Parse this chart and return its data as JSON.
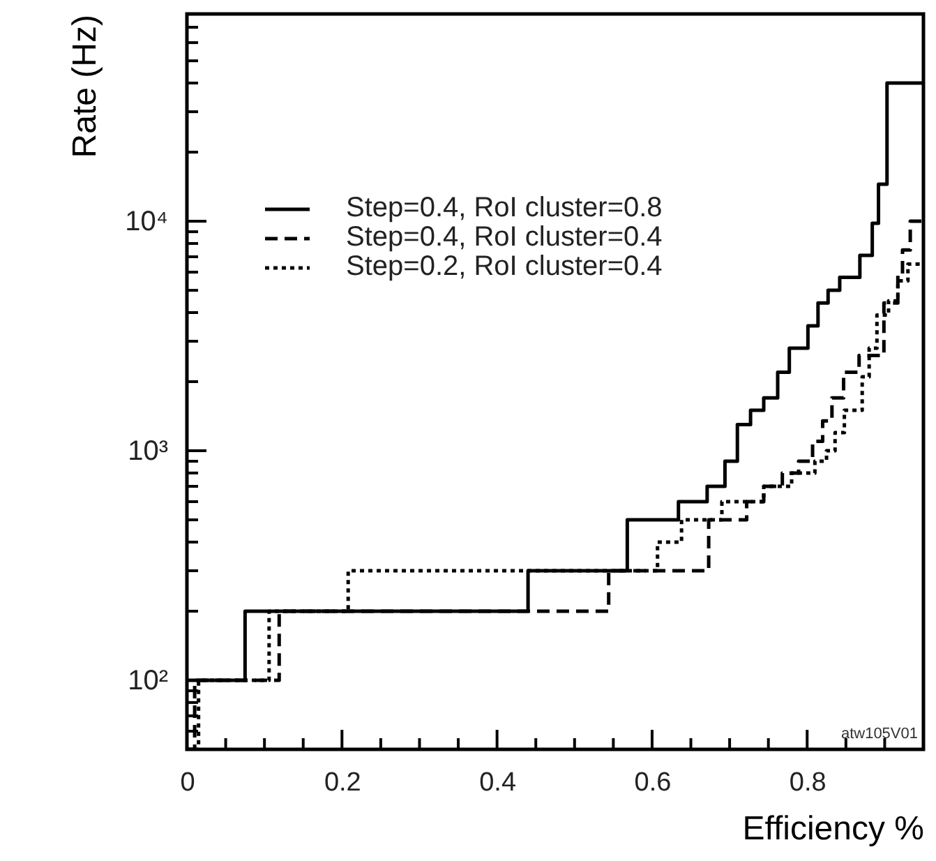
{
  "chart_data": {
    "type": "step",
    "xlabel": "Efficiency %",
    "ylabel": "Rate (Hz)",
    "log": "y",
    "grid": false,
    "legend": "top left",
    "xlim": [
      0,
      0.95
    ],
    "ylim": [
      50,
      80000
    ],
    "xticks": [
      0,
      {
        "value": 0.05,
        "label": null
      },
      {
        "value": 0.1,
        "label": null
      },
      {
        "value": 0.15,
        "label": null
      },
      0.2,
      {
        "value": 0.25,
        "label": null
      },
      {
        "value": 0.3,
        "label": null
      },
      {
        "value": 0.35,
        "label": null
      },
      0.4,
      {
        "value": 0.45,
        "label": null
      },
      {
        "value": 0.5,
        "label": null
      },
      {
        "value": 0.55,
        "label": null
      },
      0.6,
      {
        "value": 0.65,
        "label": null
      },
      {
        "value": 0.7,
        "label": null
      },
      {
        "value": 0.75,
        "label": null
      },
      0.8,
      {
        "value": 0.85,
        "label": null
      },
      {
        "value": 0.9,
        "label": null
      }
    ],
    "yticks": [
      {
        "value": 60,
        "label": null
      },
      {
        "value": 70,
        "label": null
      },
      {
        "value": 80,
        "label": null
      },
      {
        "value": 90,
        "label": null
      },
      {
        "value": 100,
        "label": "10²"
      },
      {
        "value": 200,
        "label": null
      },
      {
        "value": 300,
        "label": null
      },
      {
        "value": 400,
        "label": null
      },
      {
        "value": 500,
        "label": null
      },
      {
        "value": 600,
        "label": null
      },
      {
        "value": 700,
        "label": null
      },
      {
        "value": 800,
        "label": null
      },
      {
        "value": 900,
        "label": null
      },
      {
        "value": 1000,
        "label": "10³"
      },
      {
        "value": 2000,
        "label": null
      },
      {
        "value": 3000,
        "label": null
      },
      {
        "value": 4000,
        "label": null
      },
      {
        "value": 5000,
        "label": null
      },
      {
        "value": 6000,
        "label": null
      },
      {
        "value": 7000,
        "label": null
      },
      {
        "value": 8000,
        "label": null
      },
      {
        "value": 9000,
        "label": null
      },
      {
        "value": 10000,
        "label": "10⁴"
      },
      {
        "value": 20000,
        "label": null
      },
      {
        "value": 30000,
        "label": null
      },
      {
        "value": 40000,
        "label": null
      },
      {
        "value": 50000,
        "label": null
      },
      {
        "value": 60000,
        "label": null
      },
      {
        "value": 70000,
        "label": null
      }
    ],
    "annotations": [
      "atw105V01"
    ],
    "series": [
      {
        "name": "Step=0.4, RoI cluster=0.8",
        "color": "#000000",
        "line_style": "solid",
        "x": [
          0,
          0.075,
          0.44,
          0.568,
          0.634,
          0.671,
          0.694,
          0.71,
          0.727,
          0.744,
          0.762,
          0.777,
          0.801,
          0.814,
          0.827,
          0.842,
          0.868,
          0.884,
          0.892,
          0.903,
          0.95
        ],
        "values": [
          100,
          200,
          300,
          500,
          600,
          700,
          900,
          1300,
          1500,
          1700,
          2200,
          2800,
          3500,
          4400,
          5000,
          5700,
          7100,
          9800,
          14500,
          40000,
          40000
        ]
      },
      {
        "name": "Step=0.4, RoI cluster=0.4",
        "color": "#000000",
        "line_style": "dashed",
        "x": [
          0,
          0.01,
          0.119,
          0.544,
          0.673,
          0.722,
          0.744,
          0.768,
          0.789,
          0.807,
          0.82,
          0.832,
          0.847,
          0.867,
          0.899,
          0.917,
          0.923,
          0.933,
          0.95
        ],
        "values": [
          50,
          100,
          200,
          300,
          500,
          600,
          700,
          800,
          900,
          1100,
          1350,
          1700,
          2200,
          2600,
          4400,
          5800,
          7500,
          10000,
          10000
        ]
      },
      {
        "name": "Step=0.2, RoI cluster=0.4",
        "color": "#000000",
        "line_style": "dotted",
        "x": [
          0,
          0.015,
          0.106,
          0.208,
          0.607,
          0.638,
          0.69,
          0.744,
          0.78,
          0.81,
          0.825,
          0.836,
          0.848,
          0.871,
          0.88,
          0.89,
          0.905,
          0.917,
          0.93,
          0.95
        ],
        "values": [
          50,
          100,
          200,
          300,
          400,
          500,
          600,
          700,
          800,
          900,
          1000,
          1200,
          1500,
          2100,
          2800,
          3900,
          4500,
          5500,
          6500,
          6500
        ]
      }
    ]
  }
}
